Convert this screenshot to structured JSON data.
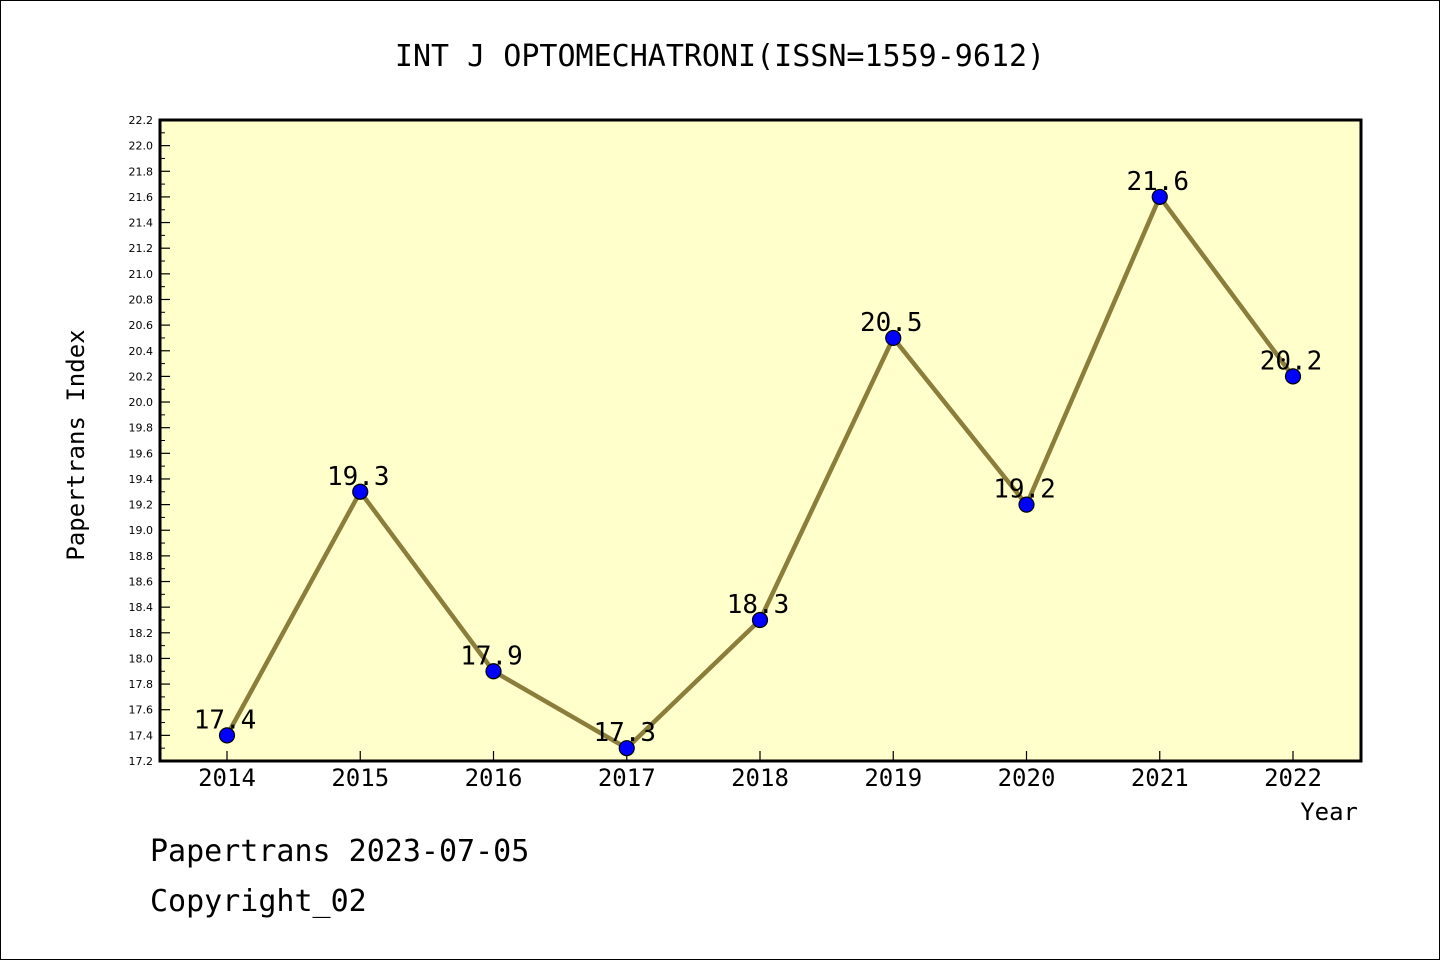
{
  "chart_data": {
    "type": "line",
    "title": "INT J OPTOMECHATRONI(ISSN=1559-9612)",
    "xlabel": "Year",
    "ylabel": "Papertrans Index",
    "categories": [
      "2014",
      "2015",
      "2016",
      "2017",
      "2018",
      "2019",
      "2020",
      "2021",
      "2022"
    ],
    "values": [
      17.4,
      19.3,
      17.9,
      17.3,
      18.3,
      20.5,
      19.2,
      21.6,
      20.2
    ],
    "data_labels": [
      "17.4",
      "19.3",
      "17.9",
      "17.3",
      "18.3",
      "20.5",
      "19.2",
      "21.6",
      "20.2"
    ],
    "ylim": [
      17.2,
      22.2
    ],
    "y_ticks": [
      "17.2",
      "17.4",
      "17.6",
      "17.8",
      "18.0",
      "18.2",
      "18.4",
      "18.6",
      "18.8",
      "19.0",
      "19.2",
      "19.4",
      "19.6",
      "19.8",
      "20.0",
      "20.2",
      "20.4",
      "20.6",
      "20.8",
      "21.0",
      "21.2",
      "21.4",
      "21.6",
      "21.8",
      "22.0",
      "22.2"
    ],
    "grid": false,
    "colors": {
      "plot_bg": "#ffffcc",
      "line": "#8b7d3a",
      "marker": "#0000ff"
    }
  },
  "footer": {
    "line1": "Papertrans 2023-07-05",
    "line2": "Copyright_02"
  }
}
